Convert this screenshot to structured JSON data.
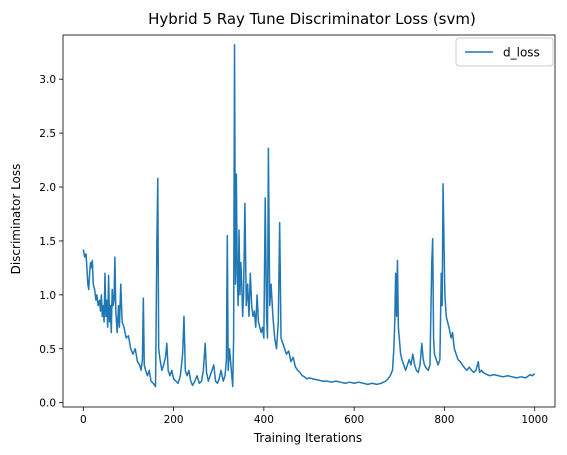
{
  "chart_data": {
    "type": "line",
    "title": "Hybrid 5 Ray Tune Discriminator Loss (svm)",
    "xlabel": "Training Iterations",
    "ylabel": "Discriminator Loss",
    "xlim": [
      -45,
      1045
    ],
    "ylim": [
      -0.04,
      3.41
    ],
    "x_ticks": [
      0,
      200,
      400,
      600,
      800,
      1000
    ],
    "y_ticks": [
      0.0,
      0.5,
      1.0,
      1.5,
      2.0,
      2.5,
      3.0
    ],
    "grid": false,
    "legend_position": "top-right",
    "series": [
      {
        "name": "d_loss",
        "color": "#1f77b4",
        "points": [
          [
            0,
            1.42
          ],
          [
            3,
            1.35
          ],
          [
            6,
            1.38
          ],
          [
            8,
            1.25
          ],
          [
            10,
            1.1
          ],
          [
            12,
            1.05
          ],
          [
            14,
            1.2
          ],
          [
            16,
            1.3
          ],
          [
            18,
            1.25
          ],
          [
            20,
            1.32
          ],
          [
            22,
            1.1
          ],
          [
            25,
            1.05
          ],
          [
            28,
            0.95
          ],
          [
            30,
            1.0
          ],
          [
            33,
            0.9
          ],
          [
            36,
            0.95
          ],
          [
            38,
            0.85
          ],
          [
            40,
            1.0
          ],
          [
            42,
            0.8
          ],
          [
            44,
            0.9
          ],
          [
            46,
            0.75
          ],
          [
            48,
            1.2
          ],
          [
            50,
            0.8
          ],
          [
            52,
            0.95
          ],
          [
            54,
            0.7
          ],
          [
            56,
            1.18
          ],
          [
            58,
            0.75
          ],
          [
            60,
            0.9
          ],
          [
            62,
            0.65
          ],
          [
            64,
            1.05
          ],
          [
            66,
            0.9
          ],
          [
            68,
            0.95
          ],
          [
            70,
            1.35
          ],
          [
            72,
            0.85
          ],
          [
            75,
            0.65
          ],
          [
            78,
            0.9
          ],
          [
            80,
            0.7
          ],
          [
            83,
            1.1
          ],
          [
            86,
            0.75
          ],
          [
            90,
            0.7
          ],
          [
            95,
            0.6
          ],
          [
            100,
            0.62
          ],
          [
            105,
            0.5
          ],
          [
            110,
            0.45
          ],
          [
            115,
            0.5
          ],
          [
            120,
            0.38
          ],
          [
            125,
            0.35
          ],
          [
            128,
            0.3
          ],
          [
            131,
            0.4
          ],
          [
            133,
            0.97
          ],
          [
            135,
            0.35
          ],
          [
            138,
            0.3
          ],
          [
            142,
            0.25
          ],
          [
            146,
            0.3
          ],
          [
            150,
            0.2
          ],
          [
            155,
            0.18
          ],
          [
            160,
            0.15
          ],
          [
            163,
            1.5
          ],
          [
            165,
            2.08
          ],
          [
            167,
            0.5
          ],
          [
            170,
            0.4
          ],
          [
            174,
            0.3
          ],
          [
            178,
            0.35
          ],
          [
            182,
            0.42
          ],
          [
            185,
            0.55
          ],
          [
            188,
            0.3
          ],
          [
            192,
            0.25
          ],
          [
            196,
            0.3
          ],
          [
            200,
            0.22
          ],
          [
            205,
            0.2
          ],
          [
            210,
            0.18
          ],
          [
            215,
            0.25
          ],
          [
            220,
            0.45
          ],
          [
            223,
            0.8
          ],
          [
            226,
            0.3
          ],
          [
            230,
            0.25
          ],
          [
            234,
            0.3
          ],
          [
            238,
            0.2
          ],
          [
            242,
            0.16
          ],
          [
            247,
            0.2
          ],
          [
            252,
            0.25
          ],
          [
            257,
            0.18
          ],
          [
            262,
            0.2
          ],
          [
            266,
            0.3
          ],
          [
            270,
            0.55
          ],
          [
            273,
            0.28
          ],
          [
            277,
            0.2
          ],
          [
            281,
            0.25
          ],
          [
            285,
            0.3
          ],
          [
            289,
            0.35
          ],
          [
            293,
            0.2
          ],
          [
            297,
            0.18
          ],
          [
            301,
            0.22
          ],
          [
            305,
            0.3
          ],
          [
            310,
            0.2
          ],
          [
            314,
            0.25
          ],
          [
            317,
            0.4
          ],
          [
            319,
            1.55
          ],
          [
            321,
            0.3
          ],
          [
            324,
            0.5
          ],
          [
            327,
            0.35
          ],
          [
            329,
            0.25
          ],
          [
            331,
            0.15
          ],
          [
            333,
            0.6
          ],
          [
            335,
            3.32
          ],
          [
            337,
            1.1
          ],
          [
            339,
            2.12
          ],
          [
            341,
            1.2
          ],
          [
            343,
            0.9
          ],
          [
            345,
            1.6
          ],
          [
            347,
            1.0
          ],
          [
            349,
            1.3
          ],
          [
            351,
            1.1
          ],
          [
            353,
            0.8
          ],
          [
            355,
            1.0
          ],
          [
            358,
            1.85
          ],
          [
            361,
            0.9
          ],
          [
            364,
            1.1
          ],
          [
            367,
            0.8
          ],
          [
            370,
            1.2
          ],
          [
            373,
            0.9
          ],
          [
            376,
            0.8
          ],
          [
            379,
            0.85
          ],
          [
            382,
            0.7
          ],
          [
            385,
            1.0
          ],
          [
            388,
            0.75
          ],
          [
            391,
            0.7
          ],
          [
            394,
            0.65
          ],
          [
            397,
            0.7
          ],
          [
            400,
            0.6
          ],
          [
            403,
            1.9
          ],
          [
            406,
            0.8
          ],
          [
            408,
            0.6
          ],
          [
            410,
            2.36
          ],
          [
            413,
            0.9
          ],
          [
            416,
            1.1
          ],
          [
            420,
            0.8
          ],
          [
            424,
            0.6
          ],
          [
            428,
            0.5
          ],
          [
            432,
            0.75
          ],
          [
            435,
            1.67
          ],
          [
            438,
            0.6
          ],
          [
            442,
            0.55
          ],
          [
            446,
            0.5
          ],
          [
            450,
            0.45
          ],
          [
            455,
            0.48
          ],
          [
            460,
            0.38
          ],
          [
            465,
            0.42
          ],
          [
            470,
            0.33
          ],
          [
            475,
            0.3
          ],
          [
            480,
            0.28
          ],
          [
            485,
            0.25
          ],
          [
            490,
            0.24
          ],
          [
            495,
            0.22
          ],
          [
            500,
            0.23
          ],
          [
            510,
            0.22
          ],
          [
            520,
            0.21
          ],
          [
            530,
            0.2
          ],
          [
            540,
            0.2
          ],
          [
            550,
            0.19
          ],
          [
            560,
            0.2
          ],
          [
            570,
            0.19
          ],
          [
            580,
            0.18
          ],
          [
            590,
            0.19
          ],
          [
            600,
            0.18
          ],
          [
            610,
            0.19
          ],
          [
            620,
            0.18
          ],
          [
            630,
            0.17
          ],
          [
            640,
            0.18
          ],
          [
            650,
            0.17
          ],
          [
            660,
            0.18
          ],
          [
            670,
            0.2
          ],
          [
            675,
            0.22
          ],
          [
            680,
            0.25
          ],
          [
            685,
            0.3
          ],
          [
            688,
            0.5
          ],
          [
            690,
            0.75
          ],
          [
            692,
            1.2
          ],
          [
            694,
            0.8
          ],
          [
            696,
            1.32
          ],
          [
            698,
            0.7
          ],
          [
            700,
            0.6
          ],
          [
            703,
            0.45
          ],
          [
            706,
            0.4
          ],
          [
            710,
            0.35
          ],
          [
            714,
            0.3
          ],
          [
            718,
            0.35
          ],
          [
            722,
            0.4
          ],
          [
            726,
            0.35
          ],
          [
            730,
            0.45
          ],
          [
            734,
            0.35
          ],
          [
            738,
            0.3
          ],
          [
            742,
            0.28
          ],
          [
            746,
            0.35
          ],
          [
            750,
            0.55
          ],
          [
            753,
            0.4
          ],
          [
            756,
            0.35
          ],
          [
            760,
            0.32
          ],
          [
            764,
            0.3
          ],
          [
            768,
            0.35
          ],
          [
            772,
            1.3
          ],
          [
            774,
            1.52
          ],
          [
            776,
            0.6
          ],
          [
            778,
            0.45
          ],
          [
            782,
            0.4
          ],
          [
            786,
            0.35
          ],
          [
            790,
            0.4
          ],
          [
            793,
            1.2
          ],
          [
            795,
            0.9
          ],
          [
            797,
            2.03
          ],
          [
            799,
            1.5
          ],
          [
            801,
            1.0
          ],
          [
            804,
            0.8
          ],
          [
            807,
            0.75
          ],
          [
            810,
            0.7
          ],
          [
            815,
            0.6
          ],
          [
            818,
            0.65
          ],
          [
            822,
            0.5
          ],
          [
            826,
            0.45
          ],
          [
            830,
            0.4
          ],
          [
            835,
            0.38
          ],
          [
            840,
            0.35
          ],
          [
            845,
            0.32
          ],
          [
            850,
            0.3
          ],
          [
            855,
            0.33
          ],
          [
            860,
            0.3
          ],
          [
            865,
            0.28
          ],
          [
            870,
            0.3
          ],
          [
            875,
            0.38
          ],
          [
            878,
            0.28
          ],
          [
            882,
            0.3
          ],
          [
            886,
            0.28
          ],
          [
            890,
            0.27
          ],
          [
            895,
            0.26
          ],
          [
            900,
            0.25
          ],
          [
            910,
            0.26
          ],
          [
            920,
            0.25
          ],
          [
            930,
            0.24
          ],
          [
            940,
            0.25
          ],
          [
            950,
            0.24
          ],
          [
            960,
            0.23
          ],
          [
            970,
            0.24
          ],
          [
            980,
            0.23
          ],
          [
            990,
            0.26
          ],
          [
            995,
            0.25
          ],
          [
            1000,
            0.27
          ]
        ]
      }
    ]
  }
}
